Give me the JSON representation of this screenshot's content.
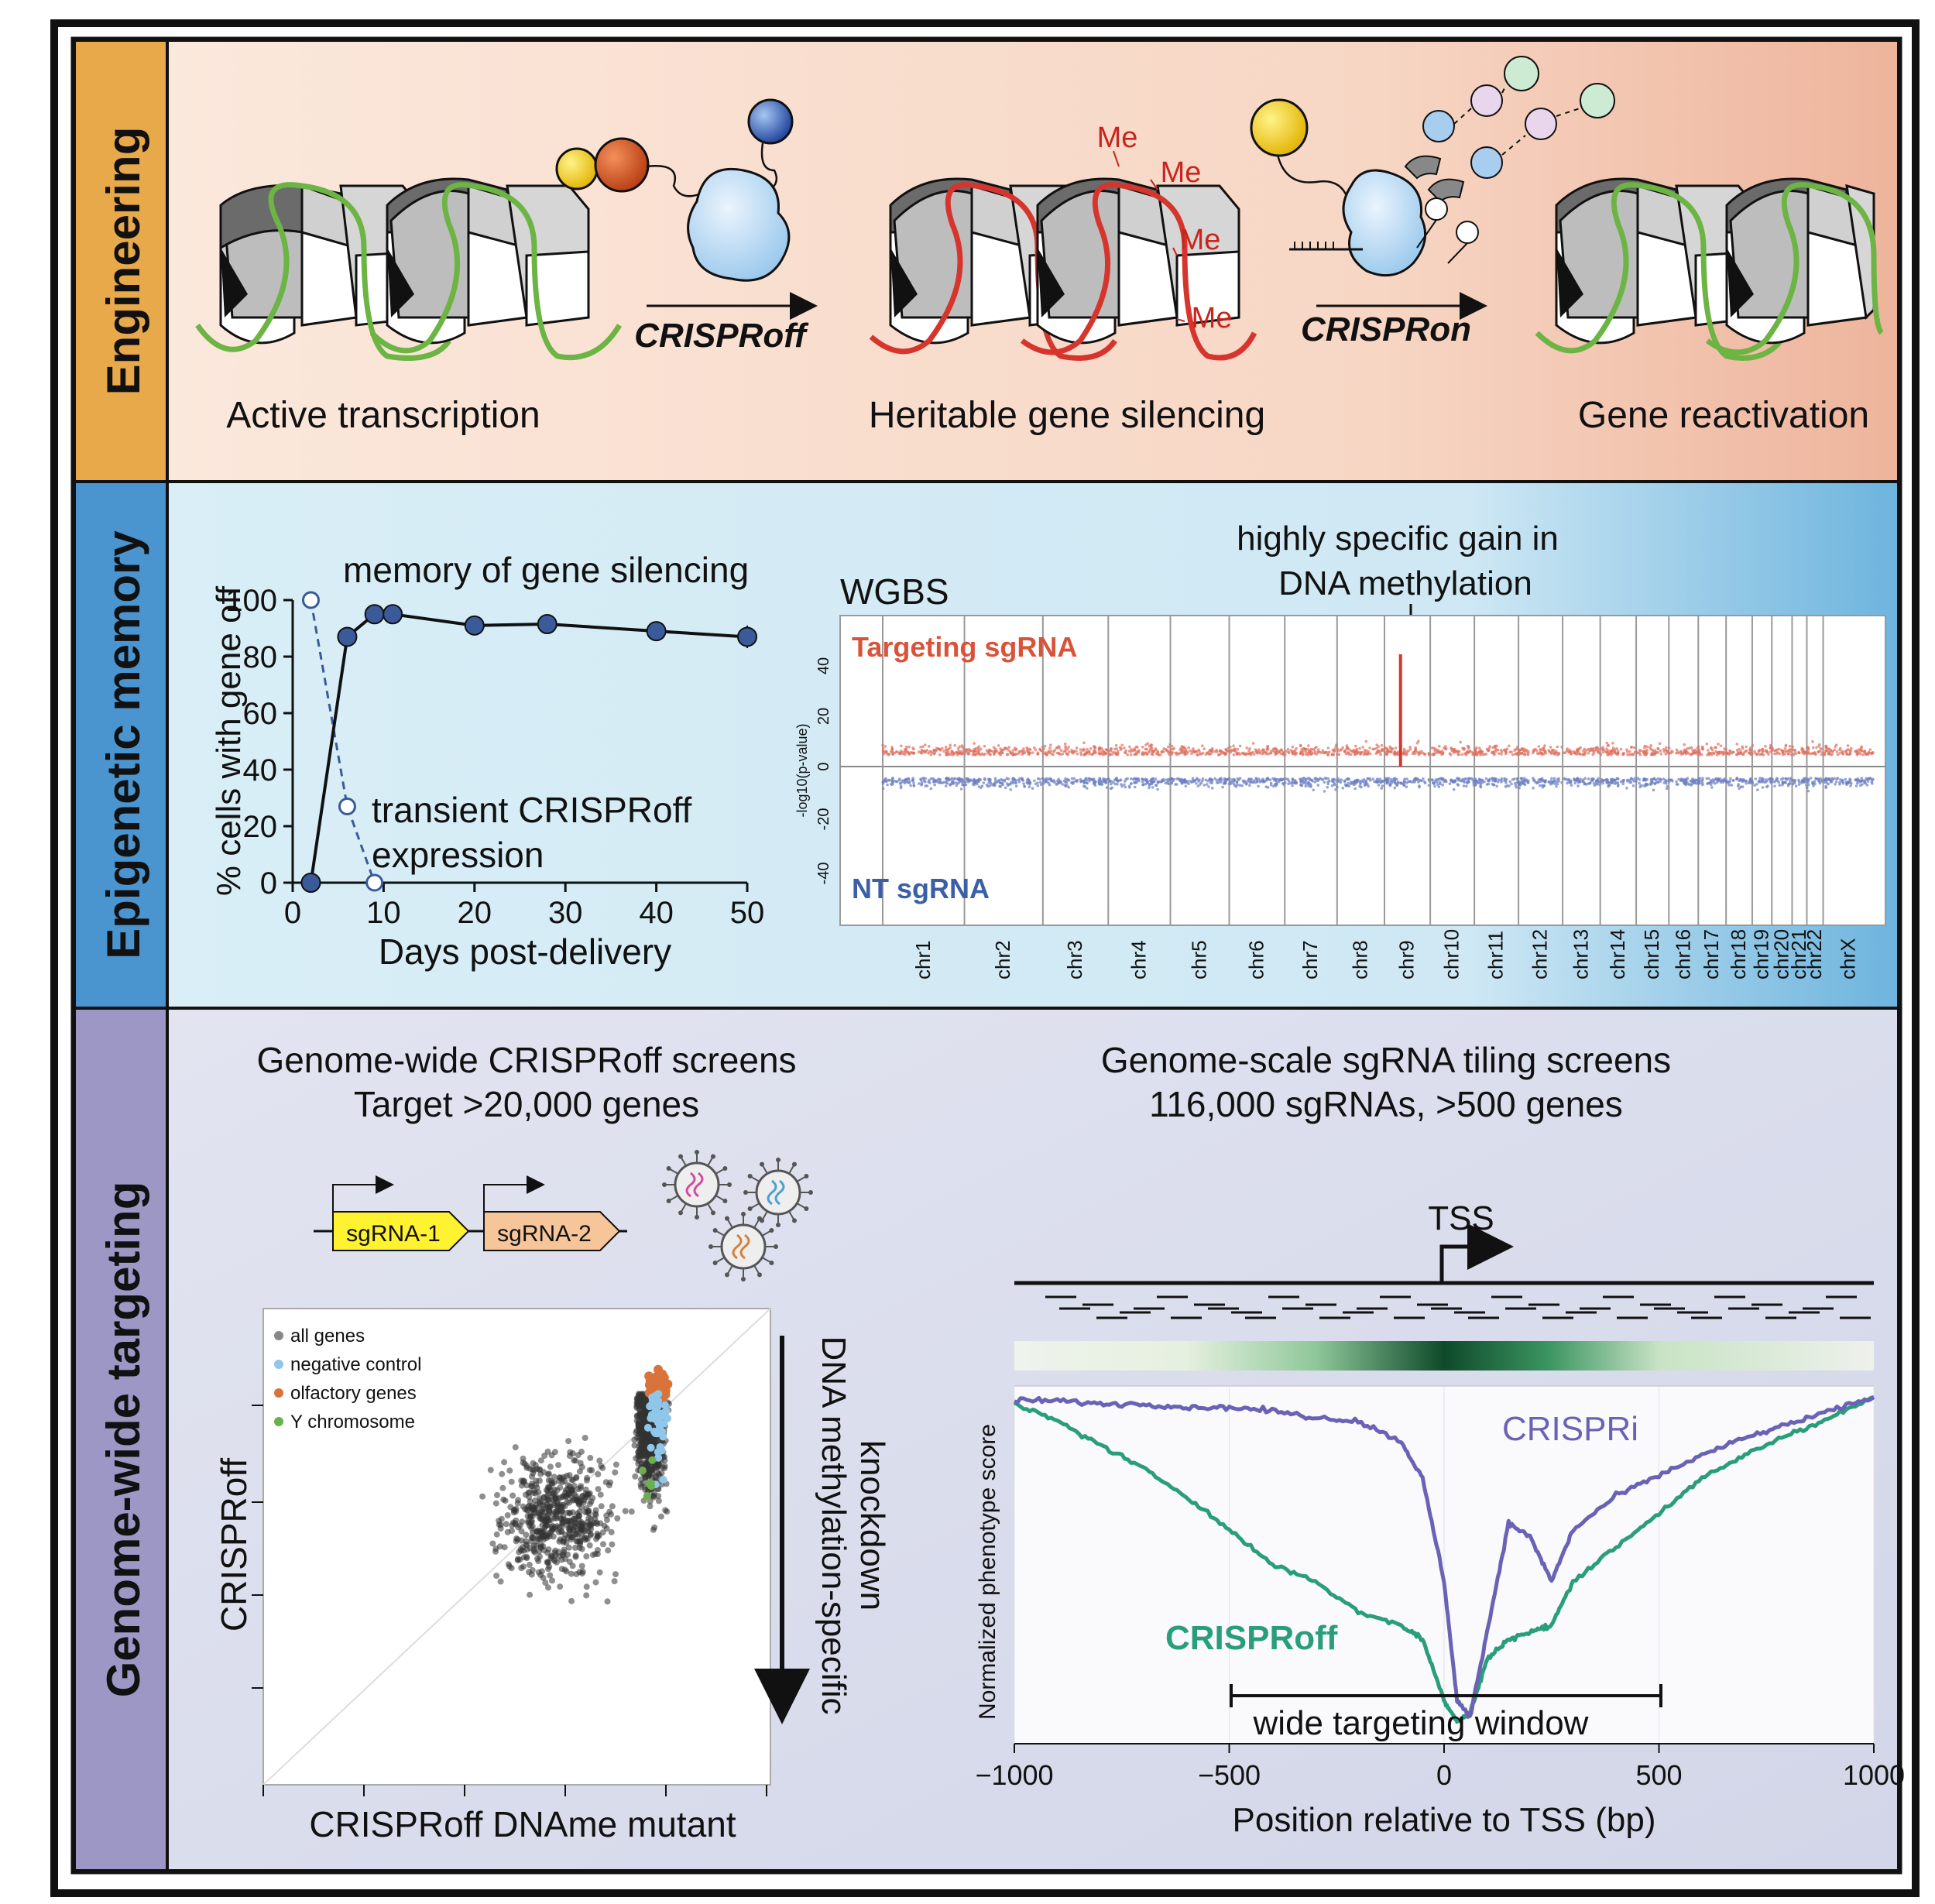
{
  "colors": {
    "eng_tab": "#e8a94a",
    "eng_bg_left": "#fbe7d8",
    "eng_bg_right": "#edb49b",
    "epi_tab": "#4a95cf",
    "epi_bg_left": "#d7ecf5",
    "epi_bg_right": "#6fb6de",
    "gw_tab": "#9d97c6",
    "gw_bg": "#d8dceb",
    "green_dna": "#6cb443",
    "red_dna": "#d6352e",
    "methyl_red": "#c8251e",
    "dot_dark": "#3b5a9a",
    "crispri": "#6a63b5",
    "crisproff": "#2a9e7a",
    "targeting": "#d9533a",
    "nt": "#3a5fa6"
  },
  "panels": {
    "engineering": {
      "tab": "Engineering",
      "captions": [
        "Active transcription",
        "Heritable gene silencing",
        "Gene reactivation"
      ],
      "arrow1": "CRISPRoff",
      "arrow2": "CRISPRon",
      "me": "Me"
    },
    "epigenetic": {
      "tab": "Epigenetic memory",
      "memory_label": "memory of gene silencing",
      "transient_line1": "transient CRISPRoff",
      "transient_line2": "expression",
      "ylabel": "% cells with gene off",
      "xlabel": "Days post-delivery",
      "wgbs_label": "WGBS",
      "gain_line1": "highly specific gain in",
      "gain_line2": "DNA methylation",
      "targeting_label": "Targeting sgRNA",
      "nt_label": "NT sgRNA",
      "manhattan_ylabel": "-log10(p-value)",
      "manhattan_yticks": [
        "40",
        "20",
        "0",
        "-20",
        "-40"
      ],
      "chromosomes": [
        "chr1",
        "chr2",
        "chr3",
        "chr4",
        "chr5",
        "chr6",
        "chr7",
        "chr8",
        "chr9",
        "chr10",
        "chr11",
        "chr12",
        "chr13",
        "chr14",
        "chr15",
        "chr16",
        "chr17",
        "chr18",
        "chr19",
        "chr20",
        "chr21",
        "chr22",
        "chrX"
      ]
    },
    "genome_wide": {
      "tab": "Genome-wide targeting",
      "left_title1": "Genome-wide CRISPRoff screens",
      "left_title2": "Target >20,000 genes",
      "sgrna1": "sgRNA-1",
      "sgrna2": "sgRNA-2",
      "legend": [
        "all genes",
        "negative control",
        "olfactory genes",
        "Y chromosome"
      ],
      "scatter_xlabel": "CRISPRoff DNAme mutant",
      "scatter_ylabel": "CRISPRoff",
      "knockdown_line1": "DNA methylation-specific",
      "knockdown_line2": "knockdown",
      "right_title1": "Genome-scale sgRNA tiling screens",
      "right_title2": "116,000 sgRNAs, >500 genes",
      "tss": "TSS",
      "crispri_label": "CRISPRi",
      "crisproff_label": "CRISPRoff",
      "window_label": "wide targeting window",
      "tiling_ylabel": "Normalized phenotype score",
      "tiling_xlabel": "Position relative to TSS (bp)",
      "tiling_xticks": [
        "−1000",
        "−500",
        "0",
        "500",
        "1000"
      ]
    }
  },
  "chart_data": [
    {
      "type": "line",
      "xlabel": "Days post-delivery",
      "ylabel": "% cells with gene off",
      "xlim": [
        0,
        50
      ],
      "ylim": [
        0,
        100
      ],
      "xticks": [
        0,
        10,
        20,
        30,
        40,
        50
      ],
      "yticks": [
        0,
        20,
        40,
        60,
        80,
        100
      ],
      "series": [
        {
          "name": "memory of gene silencing",
          "x": [
            2,
            6,
            9,
            11,
            20,
            28,
            40,
            50
          ],
          "y": [
            0,
            87,
            95,
            95,
            91,
            91.5,
            89,
            87
          ]
        },
        {
          "name": "transient CRISPRoff expression",
          "x": [
            2,
            6,
            9
          ],
          "y": [
            100,
            27,
            0
          ]
        }
      ]
    },
    {
      "type": "line",
      "xlabel": "Position relative to TSS (bp)",
      "ylabel": "Normalized phenotype score",
      "xlim": [
        -1000,
        1000
      ],
      "series": [
        {
          "name": "CRISPRi",
          "x": [
            -1000,
            -900,
            -800,
            -700,
            -600,
            -500,
            -400,
            -300,
            -200,
            -100,
            -50,
            0,
            30,
            60,
            100,
            150,
            200,
            250,
            300,
            400,
            500,
            600,
            700,
            800,
            900,
            1000
          ],
          "y": [
            0.98,
            0.98,
            0.97,
            0.97,
            0.96,
            0.96,
            0.95,
            0.93,
            0.92,
            0.86,
            0.75,
            0.45,
            0.1,
            0.05,
            0.3,
            0.62,
            0.58,
            0.45,
            0.6,
            0.7,
            0.76,
            0.82,
            0.87,
            0.91,
            0.95,
            0.99
          ]
        },
        {
          "name": "CRISPRoff",
          "x": [
            -1000,
            -900,
            -800,
            -700,
            -600,
            -500,
            -400,
            -300,
            -200,
            -100,
            -50,
            0,
            30,
            60,
            100,
            150,
            200,
            250,
            300,
            400,
            500,
            600,
            700,
            800,
            900,
            1000
          ],
          "y": [
            0.97,
            0.92,
            0.85,
            0.78,
            0.7,
            0.6,
            0.5,
            0.45,
            0.36,
            0.32,
            0.28,
            0.1,
            0.04,
            0.06,
            0.22,
            0.28,
            0.3,
            0.32,
            0.45,
            0.55,
            0.65,
            0.75,
            0.82,
            0.88,
            0.93,
            0.99
          ]
        }
      ]
    }
  ]
}
